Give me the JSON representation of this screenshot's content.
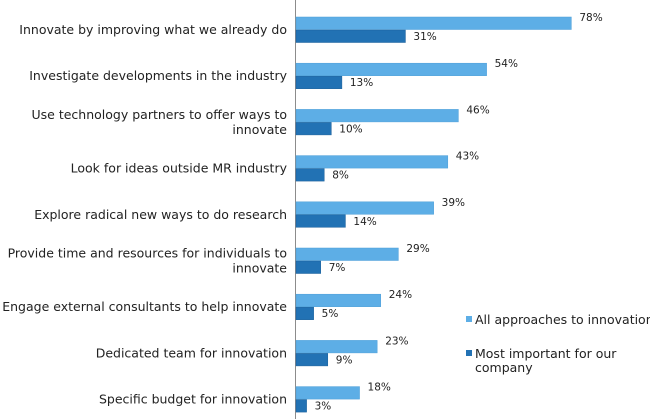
{
  "chart_data": {
    "type": "bar",
    "orientation": "horizontal",
    "categories": [
      [
        "Innovate by improving what we already do"
      ],
      [
        "Investigate developments in the industry"
      ],
      [
        "Use technology partners to offer ways to",
        "innovate"
      ],
      [
        "Look for ideas outside MR industry"
      ],
      [
        "Explore radical new ways to do research"
      ],
      [
        "Provide time and resources for individuals to",
        "innovate"
      ],
      [
        "Engage external consultants to help innovate"
      ],
      [
        "Dedicated team for innovation"
      ],
      [
        "Specific budget for innovation"
      ]
    ],
    "series": [
      {
        "name": "All approaches to innovation",
        "color": "#5DAEE6",
        "values": [
          78,
          54,
          46,
          43,
          39,
          29,
          24,
          23,
          18
        ]
      },
      {
        "name": "Most important for our company",
        "color": "#2272B4",
        "values": [
          31,
          13,
          10,
          8,
          14,
          7,
          5,
          9,
          3
        ]
      }
    ],
    "value_suffix": "%",
    "legend": {
      "position": "right",
      "items": [
        [
          "All approaches to innovation"
        ],
        [
          "Most important for our",
          "company"
        ]
      ]
    },
    "grid": false,
    "xlim": [
      0,
      80
    ]
  }
}
